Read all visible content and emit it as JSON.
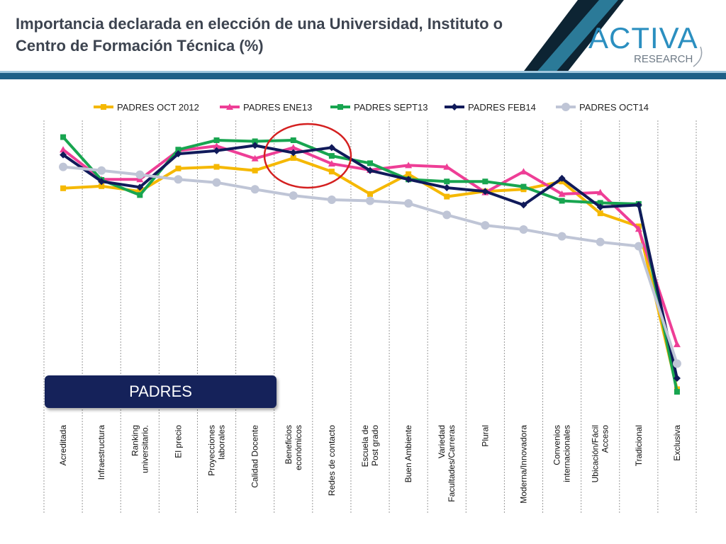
{
  "page": {
    "title": "Importancia declarada en elección de una Universidad, Instituto o Centro de Formación Técnica (%)",
    "badge": "PADRES",
    "logo": {
      "mark": "ACTIVA",
      "sub": "RESEARCH"
    }
  },
  "colors": {
    "title": "#3d4450",
    "header_dark": "#0d2433",
    "header_teal": "#2b7a98",
    "header_bar": "#1d5f86",
    "logo_mark": "#2b8fc0",
    "badge_bg": "#15225a",
    "highlight_circle": "#d42020"
  },
  "chart_data": {
    "type": "line",
    "categories": [
      "Acreditada",
      "Infraestructura",
      "Ranking universitario.",
      "El precio",
      "Proyecciones laborales",
      "Calidad Docente",
      "Beneficios económicos",
      "Redes de contacto",
      "Escuela de Post grado",
      "Buen Ambiente",
      "Variedad Facultades/Carreras",
      "Plural",
      "Moderna/Innovadora",
      "Convenios internacionales",
      "Ubicación/Fácil Acceso",
      "Tradicional",
      "Exclusiva"
    ],
    "series": [
      {
        "name": "PADRES OCT 2012",
        "color": "#f5b800",
        "marker": "square",
        "values": [
          84,
          84.4,
          83.4,
          87.8,
          88.1,
          87.4,
          89.8,
          87.2,
          82.9,
          86.7,
          82.4,
          83.4,
          83.8,
          85.3,
          79.2,
          76.7,
          45.5
        ]
      },
      {
        "name": "PADRES ENE13",
        "color": "#ee3e96",
        "marker": "triangle",
        "values": [
          91.4,
          85.7,
          85.7,
          91.2,
          92.1,
          89.7,
          91.8,
          88.7,
          87.5,
          88.4,
          88.1,
          83.2,
          87.2,
          82.9,
          83.2,
          76.2,
          54.1
        ]
      },
      {
        "name": "PADRES SEPT13",
        "color": "#18a550",
        "marker": "square",
        "values": [
          93.8,
          85.6,
          82.7,
          91.4,
          93.2,
          93,
          93.2,
          90.2,
          88.8,
          85.7,
          85.3,
          85.3,
          84.3,
          81.6,
          81.2,
          81,
          45
        ]
      },
      {
        "name": "PADRES FEB14",
        "color": "#101a5a",
        "marker": "diamond",
        "values": [
          90.4,
          85.3,
          84.2,
          90.6,
          91.2,
          92.2,
          90.8,
          91.8,
          87.4,
          85.7,
          84.1,
          83.4,
          80.8,
          85.9,
          80.4,
          80.8,
          47.6
        ]
      },
      {
        "name": "PADRES OCT14",
        "color": "#bfc5d6",
        "marker": "circle",
        "values": [
          88.1,
          87.4,
          86.6,
          85.7,
          85.1,
          83.8,
          82.6,
          81.8,
          81.6,
          81.1,
          78.9,
          76.9,
          76.1,
          74.8,
          73.7,
          72.9,
          50.4
        ]
      }
    ],
    "xlabel": "",
    "ylabel": "",
    "ylim": [
      40,
      97
    ],
    "grid": "vertical dashed",
    "legend": "top"
  }
}
